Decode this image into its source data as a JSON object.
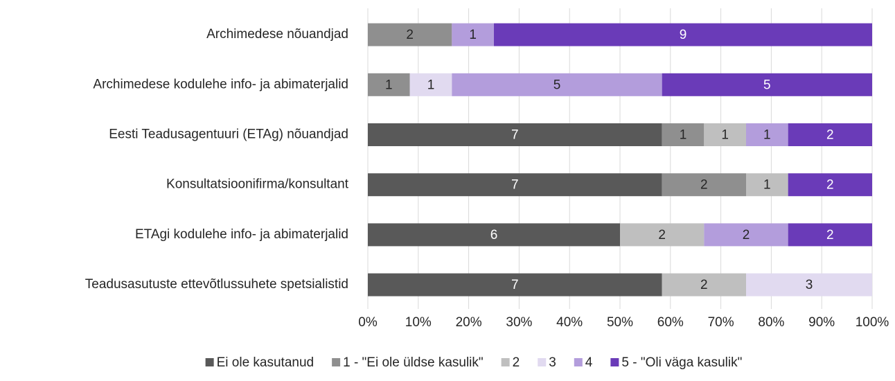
{
  "chart_data": {
    "type": "bar",
    "orientation": "horizontal",
    "stacking": "percent",
    "categories": [
      "Archimedese nõuandjad",
      "Archimedese kodulehe info- ja abimaterjalid",
      "Eesti Teadusagentuuri (ETAg) nõuandjad",
      "Konsultatsioonifirma/konsultant",
      "ETAgi kodulehe info- ja abimaterjalid",
      "Teadusasutuste ettevõtlussuhete spetsialistid"
    ],
    "series": [
      {
        "name": "Ei ole kasutanud",
        "color": "#595959",
        "label_color": "#ffffff",
        "values": [
          null,
          null,
          7,
          7,
          6,
          7
        ]
      },
      {
        "name": "1 - \"Ei ole üldse kasulik\"",
        "color": "#8f8f8f",
        "label_color": "#262626",
        "values": [
          2,
          1,
          1,
          2,
          null,
          null
        ]
      },
      {
        "name": "2",
        "color": "#bfbfbf",
        "label_color": "#262626",
        "values": [
          null,
          null,
          1,
          1,
          2,
          2
        ]
      },
      {
        "name": "3",
        "color": "#e1daf0",
        "label_color": "#262626",
        "values": [
          null,
          1,
          null,
          null,
          null,
          3
        ]
      },
      {
        "name": "4",
        "color": "#b39ddc",
        "label_color": "#262626",
        "values": [
          1,
          5,
          1,
          null,
          2,
          null
        ]
      },
      {
        "name": "5 - \"Oli väga kasulik\"",
        "color": "#6a3bb8",
        "label_color": "#ffffff",
        "values": [
          9,
          5,
          2,
          2,
          2,
          null
        ]
      }
    ],
    "xlim": [
      0,
      100
    ],
    "xticks": [
      {
        "value": 0,
        "label": "0%"
      },
      {
        "value": 10,
        "label": "10%"
      },
      {
        "value": 20,
        "label": "20%"
      },
      {
        "value": 30,
        "label": "30%"
      },
      {
        "value": 40,
        "label": "40%"
      },
      {
        "value": 50,
        "label": "50%"
      },
      {
        "value": 60,
        "label": "60%"
      },
      {
        "value": 70,
        "label": "70%"
      },
      {
        "value": 80,
        "label": "80%"
      },
      {
        "value": 90,
        "label": "90%"
      },
      {
        "value": 100,
        "label": "100%"
      }
    ],
    "grid": true,
    "legend": "bottom"
  }
}
